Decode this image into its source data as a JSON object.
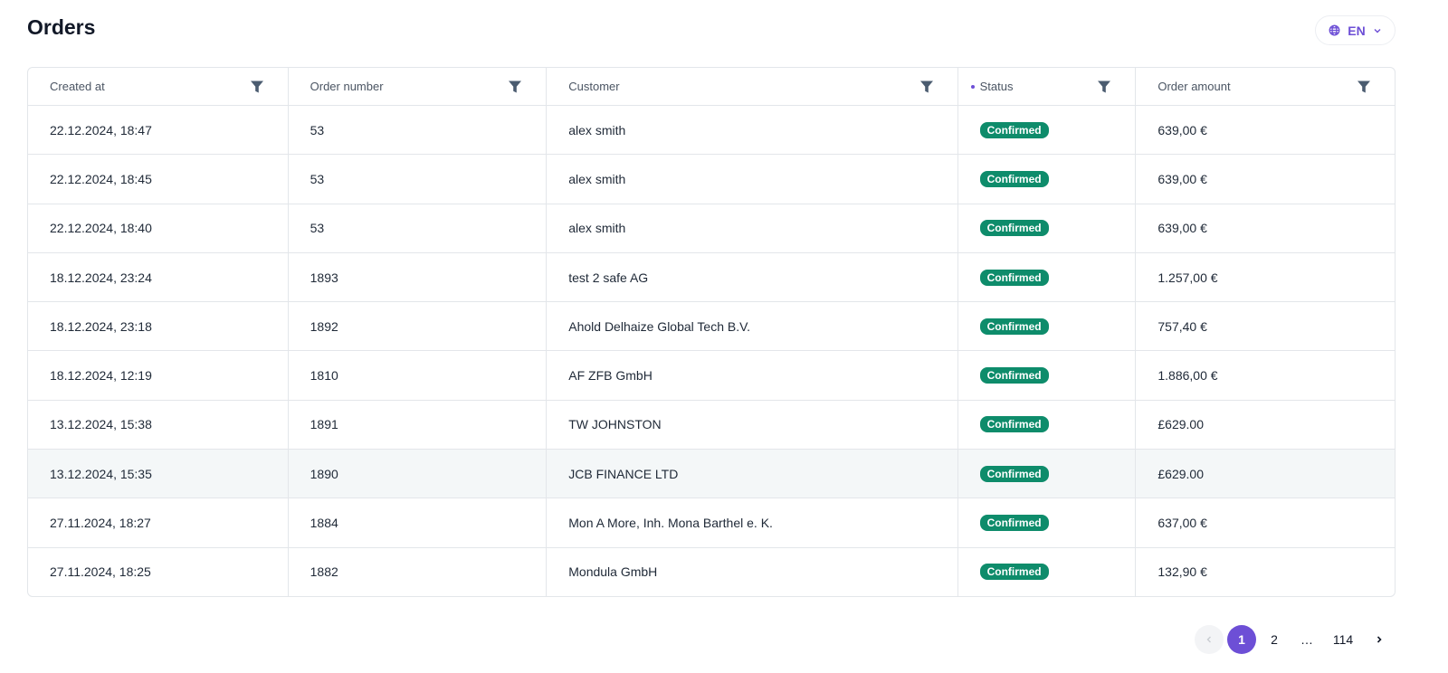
{
  "page": {
    "title": "Orders"
  },
  "language": {
    "selected": "EN",
    "icon": "globe-icon",
    "color": "#6d4fd6"
  },
  "table": {
    "columns": [
      {
        "label": "Created at"
      },
      {
        "label": "Order number"
      },
      {
        "label": "Customer"
      },
      {
        "label": "Status",
        "sorted_indicator": true
      },
      {
        "label": "Order amount"
      }
    ],
    "rows": [
      [
        "22.12.2024, 18:47",
        "53",
        "alex smith",
        "Confirmed",
        "639,00 €"
      ],
      [
        "22.12.2024, 18:45",
        "53",
        "alex smith",
        "Confirmed",
        "639,00 €"
      ],
      [
        "22.12.2024, 18:40",
        "53",
        "alex smith",
        "Confirmed",
        "639,00 €"
      ],
      [
        "18.12.2024, 23:24",
        "1893",
        "test 2 safe AG",
        "Confirmed",
        "1.257,00 €"
      ],
      [
        "18.12.2024, 23:18",
        "1892",
        "Ahold Delhaize Global Tech B.V.",
        "Confirmed",
        "757,40 €"
      ],
      [
        "18.12.2024, 12:19",
        "1810",
        "AF ZFB GmbH",
        "Confirmed",
        "1.886,00 €"
      ],
      [
        "13.12.2024, 15:38",
        "1891",
        "TW JOHNSTON",
        "Confirmed",
        "£629.00"
      ],
      [
        "13.12.2024, 15:35",
        "1890",
        "JCB FINANCE LTD",
        "Confirmed",
        "£629.00"
      ],
      [
        "27.11.2024, 18:27",
        "1884",
        "Mon A More, Inh. Mona Barthel e. K.",
        "Confirmed",
        "637,00 €"
      ],
      [
        "27.11.2024, 18:25",
        "1882",
        "Mondula GmbH",
        "Confirmed",
        "132,90 €"
      ]
    ],
    "status_color": "#0e8c6b"
  },
  "pagination": {
    "pages": [
      "1",
      "2",
      "…",
      "114"
    ],
    "current": "1"
  }
}
